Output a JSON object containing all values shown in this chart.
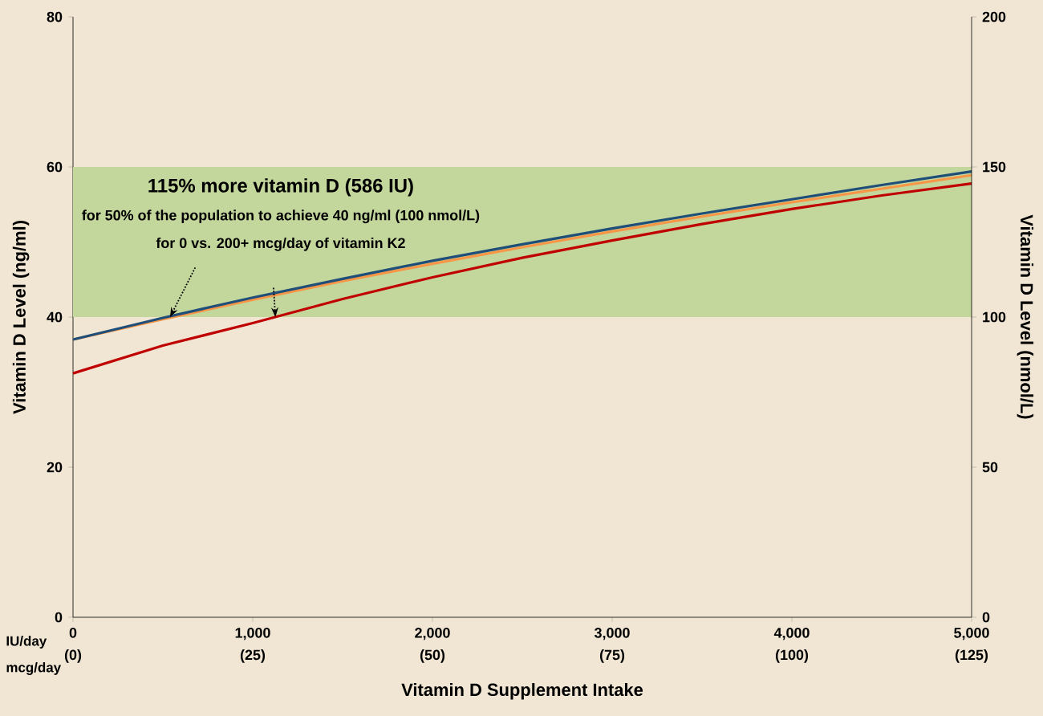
{
  "chart_data": {
    "type": "line",
    "xlabel": "Vitamin D Supplement Intake",
    "ylabel": "Vitamin D Level (ng/ml)",
    "y2label": "Vitamin D Level (nmol/L)",
    "x": [
      0,
      500,
      1000,
      1500,
      2000,
      2500,
      3000,
      3500,
      4000,
      4500,
      5000
    ],
    "series": [
      {
        "color": "#c00000",
        "values": [
          32.5,
          36.2,
          39.2,
          42.4,
          45.3,
          47.9,
          50.2,
          52.4,
          54.4,
          56.2,
          57.8
        ]
      },
      {
        "color": "#f79646",
        "values": [
          37.0,
          39.7,
          42.3,
          44.8,
          47.1,
          49.3,
          51.4,
          53.4,
          55.3,
          57.1,
          58.9
        ]
      },
      {
        "color": "#1f4e79",
        "values": [
          37.0,
          39.9,
          42.6,
          45.1,
          47.5,
          49.7,
          51.8,
          53.8,
          55.7,
          57.6,
          59.4
        ]
      }
    ],
    "xlim": [
      0,
      5000
    ],
    "xticks": [
      0,
      {
        "value": 1000,
        "label": "1,000"
      },
      {
        "value": 2000,
        "label": "2,000"
      },
      {
        "value": 3000,
        "label": "3,000"
      },
      {
        "value": 4000,
        "label": "4,000"
      },
      {
        "value": 5000,
        "label": "5,000"
      }
    ],
    "x2lim": [
      0,
      125
    ],
    "x2ticks": [
      {
        "value": 0,
        "label": "(0)"
      },
      {
        "value": 25,
        "label": "(25)"
      },
      {
        "value": 50,
        "label": "(50)"
      },
      {
        "value": 75,
        "label": "(75)"
      },
      {
        "value": 100,
        "label": "(100)"
      },
      {
        "value": 125,
        "label": "(125)"
      }
    ],
    "ylim": [
      0,
      80
    ],
    "yticks": [
      0,
      20,
      40,
      60,
      80
    ],
    "y2lim": [
      0,
      200
    ],
    "y2ticks": [
      0,
      50,
      100,
      150,
      200
    ],
    "bands": [
      {
        "axis": "y",
        "from": 40,
        "to": 60,
        "color": "#c3d69b"
      }
    ],
    "annotations": [
      "115% more vitamin D (586 IU)",
      "for 50% of the population to achieve 40 ng/ml (100 nmol/L)",
      {
        "text": "for 0 vs. 200+ mcg/day of vitamin K2",
        "x": 540,
        "y": 40
      },
      "IU/day",
      "mcg/day"
    ],
    "marker": "none",
    "line_style": "solid"
  }
}
